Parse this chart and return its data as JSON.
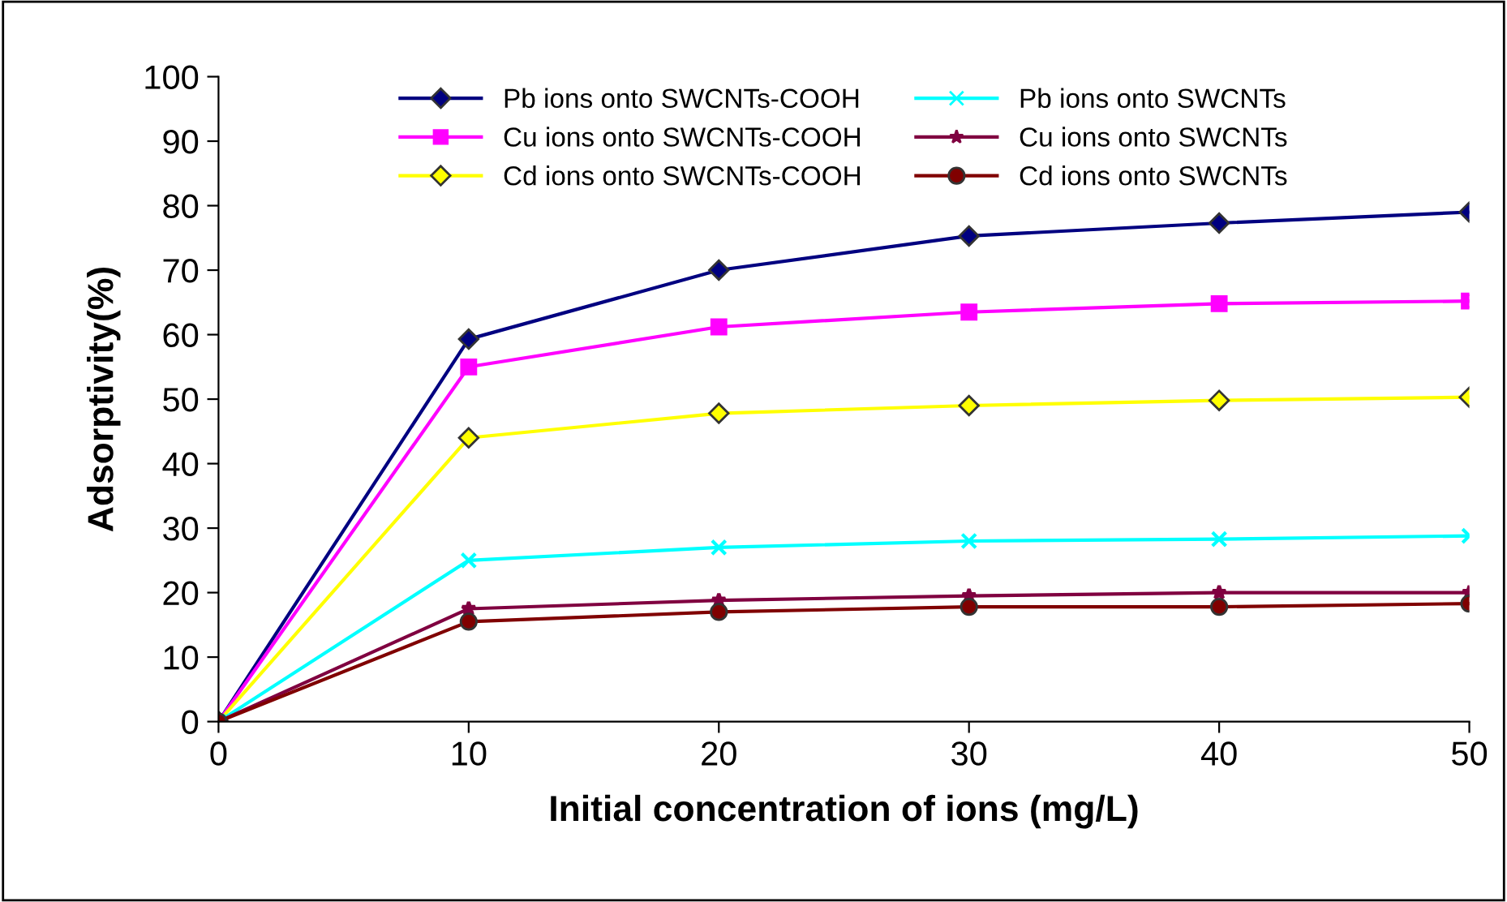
{
  "chart_data": {
    "type": "line",
    "xlabel": "Initial concentration of ions (mg/L)",
    "ylabel": "Adsorptivity(%)",
    "xlim": [
      0,
      50
    ],
    "xticks": [
      0,
      10,
      20,
      30,
      40,
      50
    ],
    "ylim": [
      0,
      100
    ],
    "yticks": [
      0,
      10,
      20,
      30,
      40,
      50,
      60,
      70,
      80,
      90,
      100
    ],
    "grid": false,
    "legend": "top",
    "line_style": "solid",
    "series": [
      {
        "name": "Pb ions onto SWCNTs-COOH",
        "color": "#000080",
        "marker": "diamond",
        "x": [
          0,
          10,
          20,
          30,
          40,
          50
        ],
        "values": [
          0,
          59.3,
          70,
          75.3,
          77.3,
          79
        ]
      },
      {
        "name": "Cu ions onto SWCNTs-COOH",
        "color": "#ff00ff",
        "marker": "square",
        "x": [
          0,
          10,
          20,
          30,
          40,
          50
        ],
        "values": [
          0,
          55,
          61.2,
          63.5,
          64.8,
          65.2
        ]
      },
      {
        "name": "Cd ions onto SWCNTs-COOH",
        "color": "#ffff00",
        "marker": "diamond",
        "x": [
          0,
          10,
          20,
          30,
          40,
          50
        ],
        "values": [
          0,
          44,
          47.8,
          49,
          49.8,
          50.3
        ]
      },
      {
        "name": "Pb ions onto SWCNTs",
        "color": "#00ffff",
        "marker": "cross",
        "x": [
          0,
          10,
          20,
          30,
          40,
          50
        ],
        "values": [
          0,
          25,
          27,
          28,
          28.3,
          28.8
        ]
      },
      {
        "name": "Cu ions onto SWCNTs",
        "color": "#800040",
        "marker": "star",
        "x": [
          0,
          10,
          20,
          30,
          40,
          50
        ],
        "values": [
          0,
          17.5,
          18.8,
          19.5,
          20,
          20
        ]
      },
      {
        "name": "Cd ions onto SWCNTs",
        "color": "#800000",
        "marker": "circle",
        "x": [
          0,
          10,
          20,
          30,
          40,
          50
        ],
        "values": [
          0,
          15.5,
          17,
          17.8,
          17.8,
          18.3
        ]
      }
    ]
  }
}
